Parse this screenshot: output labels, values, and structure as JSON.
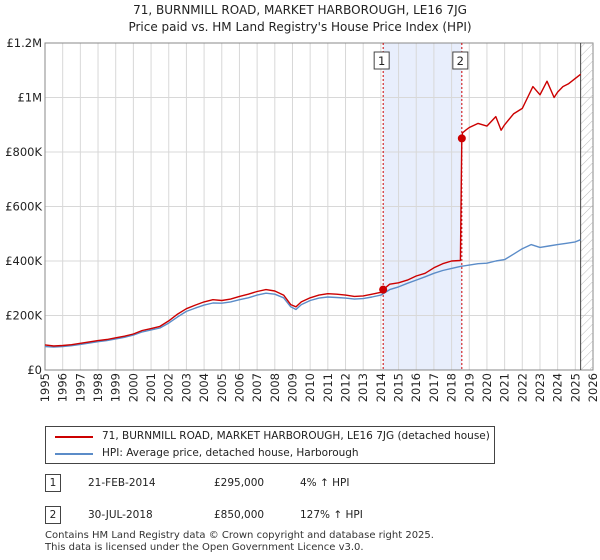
{
  "chart_data": {
    "type": "line",
    "title_lines": [
      "71, BURNMILL ROAD, MARKET HARBOROUGH, LE16 7JG",
      "Price paid vs. HM Land Registry's House Price Index (HPI)"
    ],
    "y_ticks": [
      {
        "value": 0,
        "label": "£0"
      },
      {
        "value": 200000,
        "label": "£200K"
      },
      {
        "value": 400000,
        "label": "£400K"
      },
      {
        "value": 600000,
        "label": "£600K"
      },
      {
        "value": 800000,
        "label": "£800K"
      },
      {
        "value": 1000000,
        "label": "£1M"
      },
      {
        "value": 1200000,
        "label": "£1.2M"
      }
    ],
    "x_ticks": [
      1995,
      1996,
      1997,
      1998,
      1999,
      2000,
      2001,
      2002,
      2003,
      2004,
      2005,
      2006,
      2007,
      2008,
      2009,
      2010,
      2011,
      2012,
      2013,
      2014,
      2015,
      2016,
      2017,
      2018,
      2019,
      2020,
      2021,
      2022,
      2023,
      2024,
      2025,
      2026
    ],
    "xlim": [
      1995,
      2026
    ],
    "ylim": [
      0,
      1200000
    ],
    "grid": true,
    "sale_band": [
      2014.13,
      2018.58
    ],
    "future_from": 2025.3,
    "colors": {
      "property": "#cc0000",
      "hpi": "#5b8cc8",
      "band": "#e8eefc",
      "marker": "#cc0000"
    },
    "series": [
      {
        "name": "71, BURNMILL ROAD, MARKET HARBOROUGH, LE16 7JG (detached house)",
        "color": "#cc0000",
        "x": [
          1995.0,
          1995.5,
          1996.0,
          1996.5,
          1997.0,
          1997.5,
          1998.0,
          1998.5,
          1999.0,
          1999.5,
          2000.0,
          2000.5,
          2001.0,
          2001.5,
          2002.0,
          2002.5,
          2003.0,
          2003.5,
          2004.0,
          2004.5,
          2005.0,
          2005.5,
          2006.0,
          2006.5,
          2007.0,
          2007.5,
          2008.0,
          2008.5,
          2008.9,
          2009.2,
          2009.5,
          2010.0,
          2010.5,
          2011.0,
          2011.5,
          2012.0,
          2012.5,
          2013.0,
          2013.5,
          2014.0,
          2014.13,
          2014.5,
          2015.0,
          2015.5,
          2016.0,
          2016.5,
          2017.0,
          2017.5,
          2018.0,
          2018.5,
          2018.58,
          2018.62,
          2018.8,
          2019.0,
          2019.5,
          2020.0,
          2020.5,
          2020.8,
          2021.0,
          2021.5,
          2022.0,
          2022.3,
          2022.6,
          2023.0,
          2023.4,
          2023.8,
          2024.0,
          2024.3,
          2024.6,
          2025.0,
          2025.3
        ],
        "values": [
          92000,
          88000,
          90000,
          93000,
          98000,
          103000,
          108000,
          112000,
          118000,
          124000,
          132000,
          145000,
          152000,
          160000,
          180000,
          205000,
          225000,
          238000,
          250000,
          258000,
          255000,
          260000,
          270000,
          278000,
          288000,
          295000,
          290000,
          275000,
          240000,
          232000,
          250000,
          265000,
          275000,
          280000,
          278000,
          275000,
          270000,
          272000,
          278000,
          285000,
          295000,
          315000,
          320000,
          330000,
          345000,
          355000,
          375000,
          390000,
          400000,
          402000,
          850000,
          870000,
          880000,
          890000,
          905000,
          895000,
          930000,
          880000,
          900000,
          940000,
          960000,
          1000000,
          1040000,
          1010000,
          1060000,
          1000000,
          1020000,
          1040000,
          1050000,
          1070000,
          1085000
        ]
      },
      {
        "name": "HPI: Average price, detached house, Harborough",
        "color": "#5b8cc8",
        "x": [
          1995.0,
          1995.5,
          1996.0,
          1996.5,
          1997.0,
          1997.5,
          1998.0,
          1998.5,
          1999.0,
          1999.5,
          2000.0,
          2000.5,
          2001.0,
          2001.5,
          2002.0,
          2002.5,
          2003.0,
          2003.5,
          2004.0,
          2004.5,
          2005.0,
          2005.5,
          2006.0,
          2006.5,
          2007.0,
          2007.5,
          2008.0,
          2008.5,
          2008.9,
          2009.2,
          2009.5,
          2010.0,
          2010.5,
          2011.0,
          2011.5,
          2012.0,
          2012.5,
          2013.0,
          2013.5,
          2014.0,
          2014.5,
          2015.0,
          2015.5,
          2016.0,
          2016.5,
          2017.0,
          2017.5,
          2018.0,
          2018.5,
          2019.0,
          2019.5,
          2020.0,
          2020.5,
          2021.0,
          2021.5,
          2022.0,
          2022.5,
          2023.0,
          2023.5,
          2024.0,
          2024.5,
          2025.0,
          2025.3
        ],
        "values": [
          86000,
          84000,
          86000,
          89000,
          94000,
          99000,
          104000,
          108000,
          114000,
          120000,
          128000,
          140000,
          147000,
          154000,
          172000,
          195000,
          215000,
          227000,
          238000,
          246000,
          245000,
          250000,
          258000,
          265000,
          275000,
          282000,
          278000,
          265000,
          232000,
          222000,
          240000,
          255000,
          264000,
          268000,
          266000,
          264000,
          260000,
          262000,
          268000,
          275000,
          295000,
          305000,
          318000,
          330000,
          342000,
          355000,
          365000,
          373000,
          380000,
          385000,
          390000,
          392000,
          400000,
          405000,
          425000,
          445000,
          460000,
          450000,
          455000,
          460000,
          465000,
          470000,
          478000
        ]
      }
    ],
    "sales": [
      {
        "id": "1",
        "x": 2014.13,
        "value": 295000,
        "date": "21-FEB-2014",
        "price": "£295,000",
        "hpi_change": "4% ↑ HPI"
      },
      {
        "id": "2",
        "x": 2018.58,
        "value": 850000,
        "date": "30-JUL-2018",
        "price": "£850,000",
        "hpi_change": "127% ↑ HPI"
      }
    ]
  },
  "legend": {
    "property_label": "71, BURNMILL ROAD, MARKET HARBOROUGH, LE16 7JG (detached house)",
    "hpi_label": "HPI: Average price, detached house, Harborough"
  },
  "footer": {
    "line1": "Contains HM Land Registry data © Crown copyright and database right 2025.",
    "line2": "This data is licensed under the Open Government Licence v3.0."
  }
}
